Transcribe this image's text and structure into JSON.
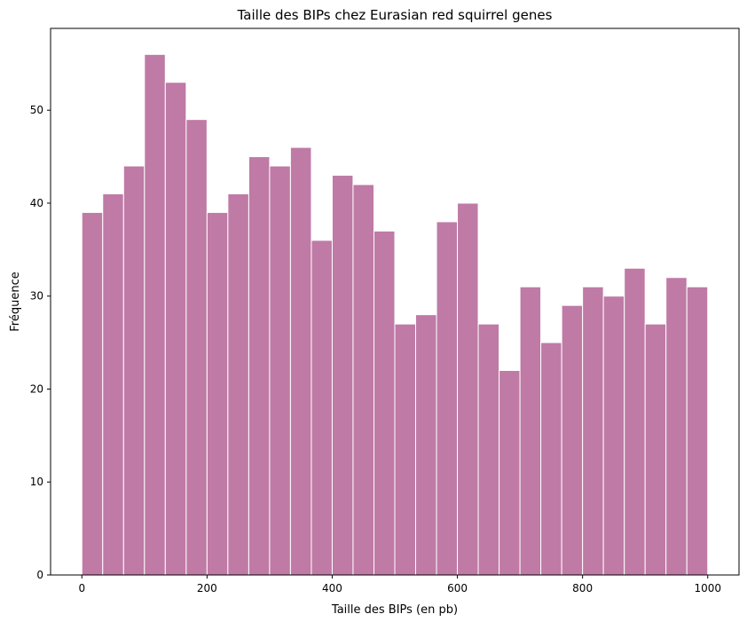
{
  "chart_data": {
    "type": "bar",
    "title": "Taille des BIPs chez Eurasian red squirrel genes",
    "xlabel": "Taille des BIPs (en pb)",
    "ylabel": "Fréquence",
    "bins": [
      {
        "start": 0,
        "end": 33.3,
        "count": 39
      },
      {
        "start": 33.3,
        "end": 66.7,
        "count": 41
      },
      {
        "start": 66.7,
        "end": 100,
        "count": 44
      },
      {
        "start": 100,
        "end": 133.3,
        "count": 56
      },
      {
        "start": 133.3,
        "end": 166.7,
        "count": 53
      },
      {
        "start": 166.7,
        "end": 200,
        "count": 49
      },
      {
        "start": 200,
        "end": 233.3,
        "count": 39
      },
      {
        "start": 233.3,
        "end": 266.7,
        "count": 41
      },
      {
        "start": 266.7,
        "end": 300,
        "count": 45
      },
      {
        "start": 300,
        "end": 333.3,
        "count": 44
      },
      {
        "start": 333.3,
        "end": 366.7,
        "count": 46
      },
      {
        "start": 366.7,
        "end": 400,
        "count": 36
      },
      {
        "start": 400,
        "end": 433.3,
        "count": 43
      },
      {
        "start": 433.3,
        "end": 466.7,
        "count": 42
      },
      {
        "start": 466.7,
        "end": 500,
        "count": 37
      },
      {
        "start": 500,
        "end": 533.3,
        "count": 27
      },
      {
        "start": 533.3,
        "end": 566.7,
        "count": 28
      },
      {
        "start": 566.7,
        "end": 600,
        "count": 38
      },
      {
        "start": 600,
        "end": 633.3,
        "count": 40
      },
      {
        "start": 633.3,
        "end": 666.7,
        "count": 27
      },
      {
        "start": 666.7,
        "end": 700,
        "count": 22
      },
      {
        "start": 700,
        "end": 733.3,
        "count": 31
      },
      {
        "start": 733.3,
        "end": 766.7,
        "count": 25
      },
      {
        "start": 766.7,
        "end": 800,
        "count": 29
      },
      {
        "start": 800,
        "end": 833.3,
        "count": 31
      },
      {
        "start": 833.3,
        "end": 866.7,
        "count": 30
      },
      {
        "start": 866.7,
        "end": 900,
        "count": 33
      },
      {
        "start": 900,
        "end": 933.3,
        "count": 27
      },
      {
        "start": 933.3,
        "end": 966.7,
        "count": 32
      },
      {
        "start": 966.7,
        "end": 1000,
        "count": 31
      }
    ],
    "xlim": [
      -50,
      1050
    ],
    "ylim": [
      0,
      58.8
    ],
    "xticks": [
      0,
      200,
      400,
      600,
      800,
      1000
    ],
    "yticks": [
      0,
      10,
      20,
      30,
      40,
      50
    ],
    "grid": false,
    "legend": "none",
    "colors": {
      "bar_fill": "#bf7aa6",
      "bar_edge": "#ffffff",
      "axis": "#000000"
    }
  }
}
